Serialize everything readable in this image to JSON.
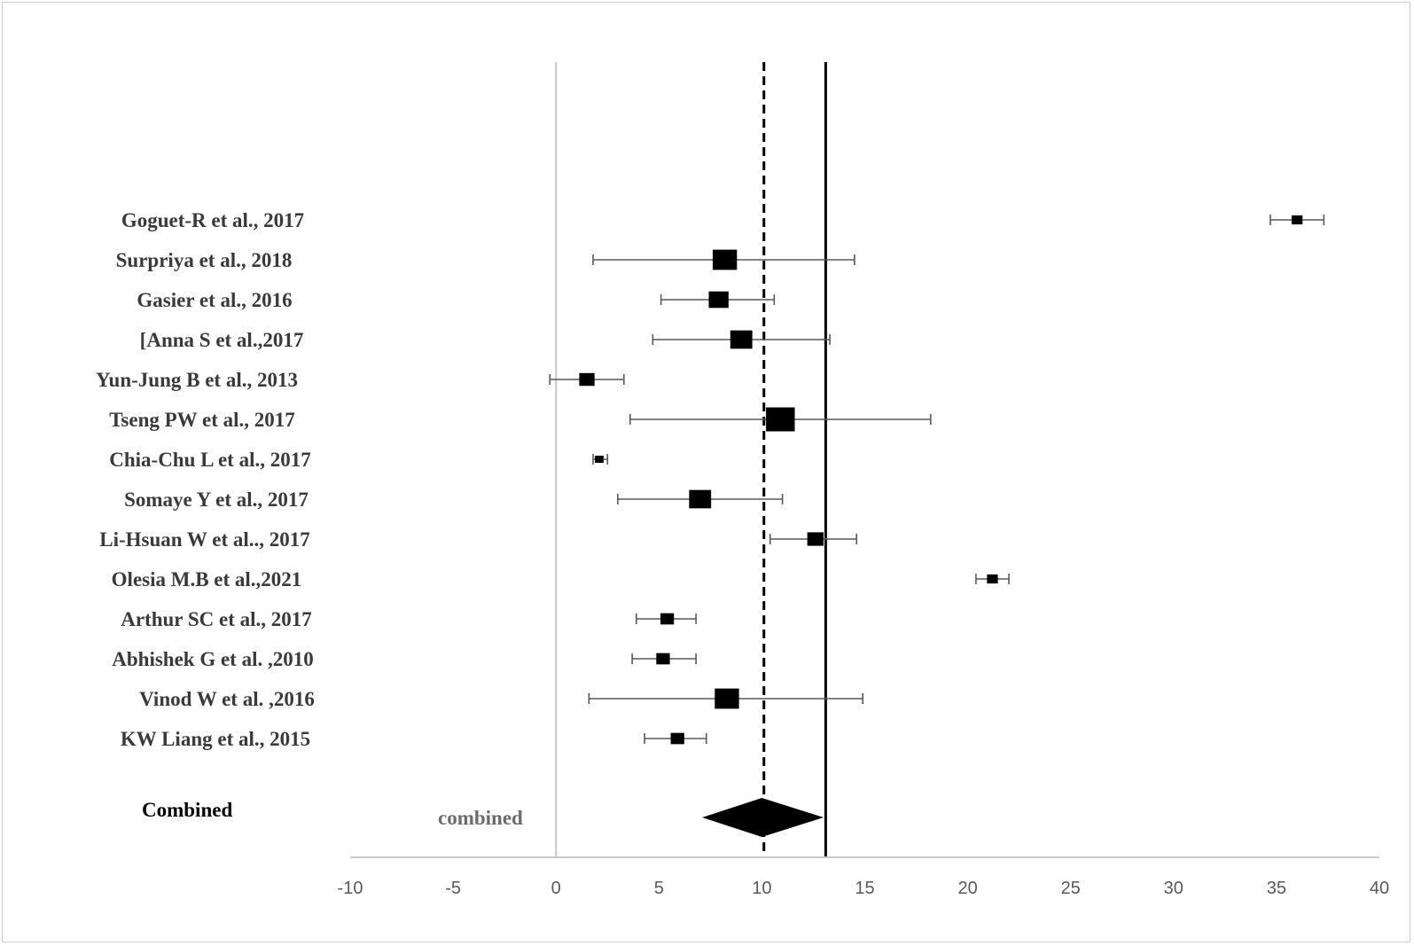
{
  "chart_data": {
    "type": "forest",
    "xlim": [
      -10,
      40
    ],
    "xticks": [
      "-10",
      "-5",
      "0",
      "5",
      "10",
      "15",
      "20",
      "25",
      "30",
      "35",
      "40"
    ],
    "grid": false,
    "studies": [
      {
        "label": "Goguet-R et  al., 2017",
        "estimate": 36.0,
        "lower": 34.7,
        "upper": 37.3,
        "weight": 1
      },
      {
        "label": "Surpriya  et al., 2018",
        "estimate": 8.2,
        "lower": 1.8,
        "upper": 14.5,
        "weight": 4
      },
      {
        "label": "Gasier et al., 2016",
        "estimate": 7.9,
        "lower": 5.1,
        "upper": 10.6,
        "weight": 3
      },
      {
        "label": "[Anna S et al.,2017",
        "estimate": 9.0,
        "lower": 4.7,
        "upper": 13.3,
        "weight": 3.5
      },
      {
        "label": "Yun-Jung B et al., 2013",
        "estimate": 1.5,
        "lower": -0.3,
        "upper": 3.3,
        "weight": 2
      },
      {
        "label": "Tseng PW et al., 2017",
        "estimate": 10.9,
        "lower": 3.6,
        "upper": 18.2,
        "weight": 5
      },
      {
        "label": "Chia-Chu L et al., 2017",
        "estimate": 2.1,
        "lower": 1.8,
        "upper": 2.5,
        "weight": 0.5
      },
      {
        "label": "Somaye Y et al., 2017",
        "estimate": 7.0,
        "lower": 3.0,
        "upper": 11.0,
        "weight": 3.5
      },
      {
        "label": "Li-Hsuan W et al.., 2017",
        "estimate": 12.6,
        "lower": 10.4,
        "upper": 14.6,
        "weight": 2.2
      },
      {
        "label": "Olesia M.B et al.,2021",
        "estimate": 21.2,
        "lower": 20.4,
        "upper": 22.0,
        "weight": 1
      },
      {
        "label": "Arthur SC et al., 2017",
        "estimate": 5.4,
        "lower": 3.9,
        "upper": 6.8,
        "weight": 1.6
      },
      {
        "label": "Abhishek G et al. ,2010",
        "estimate": 5.2,
        "lower": 3.7,
        "upper": 6.8,
        "weight": 1.6
      },
      {
        "label": "Vinod W et al. ,2016",
        "estimate": 8.3,
        "lower": 1.6,
        "upper": 14.9,
        "weight": 4
      },
      {
        "label": "KW Liang et al., 2015",
        "estimate": 5.9,
        "lower": 4.3,
        "upper": 7.3,
        "weight": 1.6
      }
    ],
    "combined": {
      "label": "Combined",
      "inline_label": "combined",
      "estimate": 10.0,
      "lower": 7.1,
      "upper": 13.0
    },
    "reference_lines": {
      "dashed": 10.1,
      "solid": 13.1,
      "zero": 0
    }
  },
  "colors": {
    "marker": "#000000",
    "ci_line": "#595959",
    "axis": "#c8c8c8",
    "study_text": "#3a3a3a"
  }
}
